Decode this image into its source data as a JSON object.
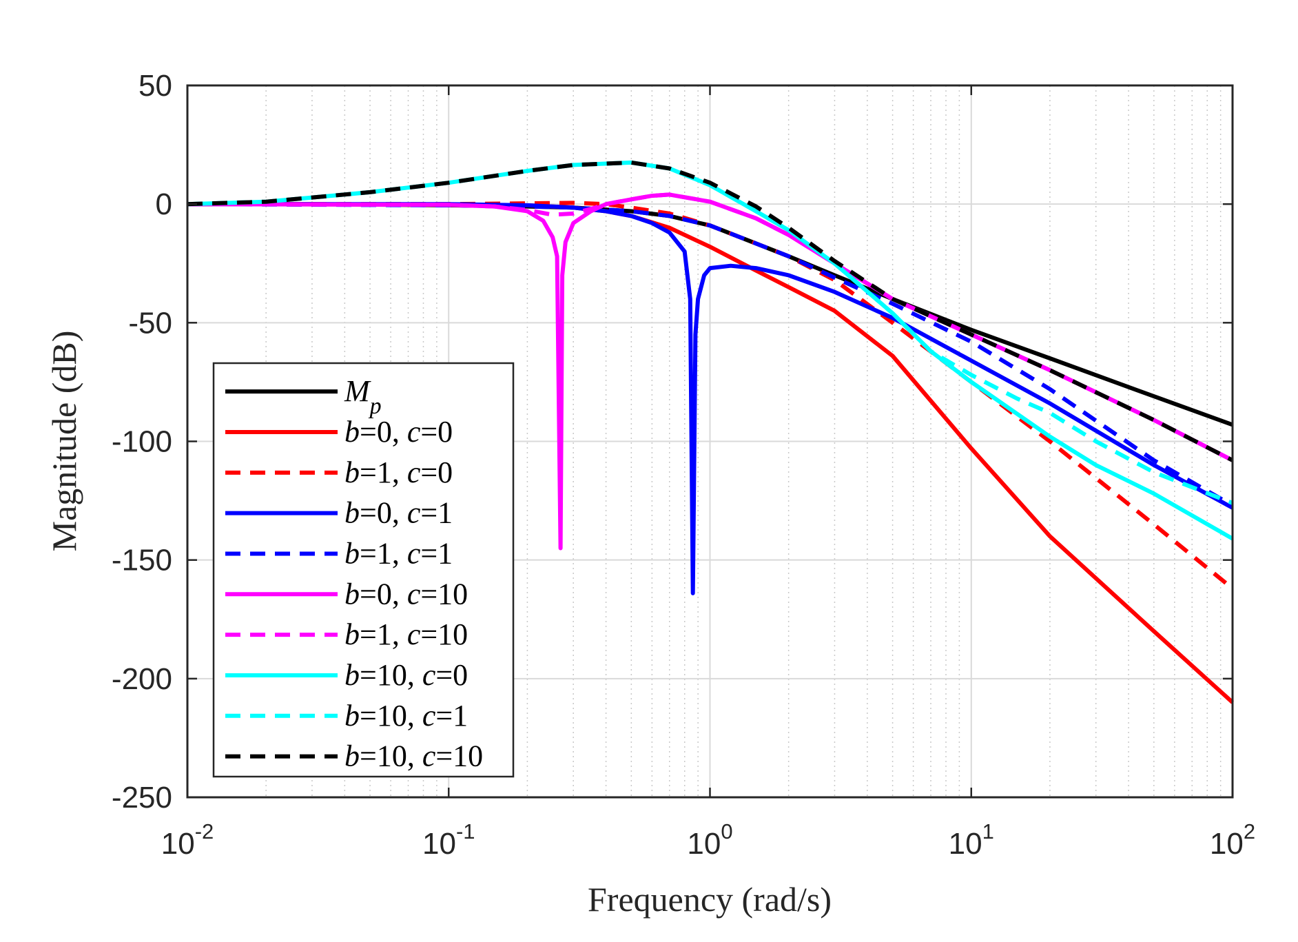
{
  "chart_data": {
    "type": "line",
    "title": "",
    "xlabel": "Frequency (rad/s)",
    "ylabel": "Magnitude (dB)",
    "xscale": "log",
    "xlim": [
      0.01,
      100
    ],
    "ylim": [
      -250,
      50
    ],
    "grid": true,
    "minor_grid": true,
    "legend_position": "bottom-left",
    "x_ticks": [
      {
        "value": 0.01,
        "base": "10",
        "exp": "-2"
      },
      {
        "value": 0.1,
        "base": "10",
        "exp": "-1"
      },
      {
        "value": 1,
        "base": "10",
        "exp": "0"
      },
      {
        "value": 10,
        "base": "10",
        "exp": "1"
      },
      {
        "value": 100,
        "base": "10",
        "exp": "2"
      }
    ],
    "y_ticks": [
      {
        "value": 50,
        "label": "50"
      },
      {
        "value": 0,
        "label": "0"
      },
      {
        "value": -50,
        "label": "-50"
      },
      {
        "value": -100,
        "label": "-100"
      },
      {
        "value": -150,
        "label": "-150"
      },
      {
        "value": -200,
        "label": "-200"
      },
      {
        "value": -250,
        "label": "-250"
      }
    ],
    "series": [
      {
        "name": "M_p",
        "legend": [
          {
            "t": "M",
            "i": true
          },
          {
            "t": "p",
            "i": true,
            "sub": true
          }
        ],
        "color": "#000000",
        "dash": "solid",
        "x": [
          0.01,
          0.03,
          0.1,
          0.2,
          0.3,
          0.5,
          0.7,
          1,
          2,
          3,
          5,
          10,
          20,
          50,
          100
        ],
        "y": [
          0,
          0,
          -0.5,
          -1,
          -1.5,
          -3,
          -5,
          -9,
          -22,
          -30,
          -40,
          -53,
          -65,
          -81,
          -93
        ]
      },
      {
        "name": "b=0, c=0",
        "legend": [
          {
            "t": "b",
            "i": true
          },
          {
            "t": "=0, ",
            "i": false
          },
          {
            "t": "c",
            "i": true
          },
          {
            "t": "=0",
            "i": false
          }
        ],
        "color": "#ff0000",
        "dash": "solid",
        "x": [
          0.01,
          0.1,
          0.2,
          0.3,
          0.4,
          0.5,
          0.7,
          1,
          1.5,
          2,
          3,
          5,
          10,
          20,
          50,
          100
        ],
        "y": [
          0,
          -0.2,
          -0.5,
          -1.5,
          -3,
          -5,
          -10,
          -18,
          -28,
          -35,
          -45,
          -64,
          -103,
          -140,
          -180,
          -210
        ]
      },
      {
        "name": "b=1, c=0",
        "legend": [
          {
            "t": "b",
            "i": true
          },
          {
            "t": "=1, ",
            "i": false
          },
          {
            "t": "c",
            "i": true
          },
          {
            "t": "=0",
            "i": false
          }
        ],
        "color": "#ff0000",
        "dash": "dashed",
        "x": [
          0.01,
          0.1,
          0.2,
          0.3,
          0.4,
          0.5,
          0.7,
          1,
          2,
          3,
          5,
          10,
          20,
          50,
          100
        ],
        "y": [
          0,
          0,
          0.3,
          0.5,
          0,
          -1.5,
          -4,
          -9,
          -22,
          -32,
          -50,
          -75,
          -100,
          -135,
          -162
        ]
      },
      {
        "name": "b=0, c=1",
        "legend": [
          {
            "t": "b",
            "i": true
          },
          {
            "t": "=0, ",
            "i": false
          },
          {
            "t": "c",
            "i": true
          },
          {
            "t": "=1",
            "i": false
          }
        ],
        "color": "#0000ff",
        "dash": "solid",
        "x": [
          0.01,
          0.1,
          0.2,
          0.3,
          0.4,
          0.5,
          0.6,
          0.7,
          0.8,
          0.84,
          0.86,
          0.88,
          0.9,
          0.95,
          1,
          1.2,
          1.5,
          2,
          3,
          5,
          10,
          20,
          50,
          100
        ],
        "y": [
          0,
          0,
          -0.5,
          -1.5,
          -3,
          -5,
          -8,
          -12,
          -20,
          -40,
          -164,
          -55,
          -40,
          -30,
          -27,
          -26,
          -27,
          -30,
          -37,
          -48,
          -66,
          -84,
          -110,
          -128
        ]
      },
      {
        "name": "b=1, c=1",
        "legend": [
          {
            "t": "b",
            "i": true
          },
          {
            "t": "=1, ",
            "i": false
          },
          {
            "t": "c",
            "i": true
          },
          {
            "t": "=1",
            "i": false
          }
        ],
        "color": "#0000ff",
        "dash": "dashed",
        "x": [
          0.01,
          0.1,
          0.2,
          0.3,
          0.5,
          0.7,
          1,
          2,
          3,
          5,
          10,
          20,
          50,
          100
        ],
        "y": [
          0,
          -0.5,
          -1,
          -1.5,
          -3,
          -5,
          -9,
          -22,
          -31,
          -42,
          -58,
          -78,
          -108,
          -127
        ]
      },
      {
        "name": "b=0, c=10",
        "legend": [
          {
            "t": "b",
            "i": true
          },
          {
            "t": "=0, ",
            "i": false
          },
          {
            "t": "c",
            "i": true
          },
          {
            "t": "=10",
            "i": false
          }
        ],
        "color": "#ff00ff",
        "dash": "solid",
        "x": [
          0.01,
          0.1,
          0.15,
          0.2,
          0.23,
          0.25,
          0.26,
          0.268,
          0.272,
          0.28,
          0.3,
          0.35,
          0.4,
          0.5,
          0.6,
          0.7,
          1,
          1.5,
          2,
          3,
          5,
          10,
          20,
          50,
          100
        ],
        "y": [
          0,
          -0.3,
          -1,
          -3,
          -7,
          -14,
          -22,
          -145,
          -30,
          -16,
          -8,
          -3,
          0,
          2,
          3.5,
          4,
          1,
          -6,
          -13,
          -25,
          -40,
          -55,
          -70,
          -91,
          -108
        ]
      },
      {
        "name": "b=1, c=10",
        "legend": [
          {
            "t": "b",
            "i": true
          },
          {
            "t": "=1, ",
            "i": false
          },
          {
            "t": "c",
            "i": true
          },
          {
            "t": "=10",
            "i": false
          }
        ],
        "color": "#ff00ff",
        "dash": "dashed",
        "x": [
          0.01,
          0.1,
          0.15,
          0.2,
          0.25,
          0.3,
          0.35,
          0.4,
          0.5,
          0.6,
          0.7,
          1,
          1.5,
          2,
          3,
          5,
          10,
          20,
          50,
          100
        ],
        "y": [
          0,
          -0.3,
          -1,
          -2.5,
          -4.5,
          -4,
          -2,
          0,
          2,
          3.5,
          4,
          1,
          -6,
          -13,
          -25,
          -40,
          -55,
          -70,
          -91,
          -108
        ]
      },
      {
        "name": "b=10, c=0",
        "legend": [
          {
            "t": "b",
            "i": true
          },
          {
            "t": "=10, ",
            "i": false
          },
          {
            "t": "c",
            "i": true
          },
          {
            "t": "=0",
            "i": false
          }
        ],
        "color": "#00ffff",
        "dash": "solid",
        "x": [
          0.01,
          0.02,
          0.05,
          0.1,
          0.2,
          0.3,
          0.5,
          0.7,
          1,
          1.5,
          2,
          3,
          5,
          7,
          10,
          20,
          30,
          50,
          100
        ],
        "y": [
          0,
          1,
          5,
          9,
          14,
          16.5,
          17.5,
          15,
          8,
          -3,
          -11,
          -25,
          -46,
          -62,
          -75,
          -98,
          -110,
          -122,
          -141
        ]
      },
      {
        "name": "b=10, c=1",
        "legend": [
          {
            "t": "b",
            "i": true
          },
          {
            "t": "=10, ",
            "i": false
          },
          {
            "t": "c",
            "i": true
          },
          {
            "t": "=1",
            "i": false
          }
        ],
        "color": "#00ffff",
        "dash": "dashed",
        "x": [
          0.01,
          0.02,
          0.05,
          0.1,
          0.2,
          0.3,
          0.5,
          0.7,
          1,
          1.5,
          2,
          3,
          5,
          7,
          10,
          15,
          20,
          30,
          50,
          100
        ],
        "y": [
          0,
          1,
          5,
          9,
          14,
          16.5,
          17.5,
          15,
          8,
          -3,
          -11,
          -25,
          -46,
          -62,
          -72,
          -82,
          -88,
          -100,
          -113,
          -126
        ]
      },
      {
        "name": "b=10, c=10",
        "legend": [
          {
            "t": "b",
            "i": true
          },
          {
            "t": "=10, ",
            "i": false
          },
          {
            "t": "c",
            "i": true
          },
          {
            "t": "=10",
            "i": false
          }
        ],
        "color": "#000000",
        "dash": "dashed",
        "x": [
          0.01,
          0.02,
          0.05,
          0.1,
          0.2,
          0.3,
          0.5,
          0.7,
          1,
          1.5,
          2,
          3,
          5,
          10,
          20,
          50,
          100
        ],
        "y": [
          0,
          1,
          5,
          9,
          14,
          16.5,
          17.5,
          15,
          9,
          -1,
          -10,
          -24,
          -40,
          -55,
          -70,
          -91,
          -108
        ]
      }
    ]
  }
}
